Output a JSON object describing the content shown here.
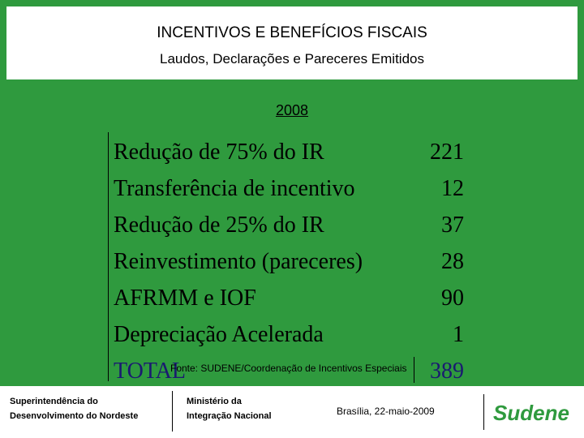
{
  "header": {
    "title": "INCENTIVOS E BENEFÍCIOS FISCAIS",
    "subtitle": "Laudos, Declarações e Pareceres Emitidos"
  },
  "year": "2008",
  "table": {
    "rows": [
      [
        "Redução de 75% do IR",
        221
      ],
      [
        "Transferência de incentivo",
        12
      ],
      [
        "Redução de 25% do IR",
        37
      ],
      [
        "Reinvestimento (pareceres)",
        28
      ],
      [
        "AFRMM e IOF",
        90
      ],
      [
        "Depreciação Acelerada",
        1
      ]
    ],
    "total": [
      "TOTAL",
      389
    ]
  },
  "source": "Fonte: SUDENE/Coordenação de Incentivos Especiais",
  "footer": {
    "left": [
      "Superintendência do",
      "Desenvolvimento do Nordeste"
    ],
    "middle": [
      "Ministério da",
      "Integração Nacional"
    ],
    "right": "Brasília, 22-maio-2009",
    "logo": "Sudene"
  }
}
